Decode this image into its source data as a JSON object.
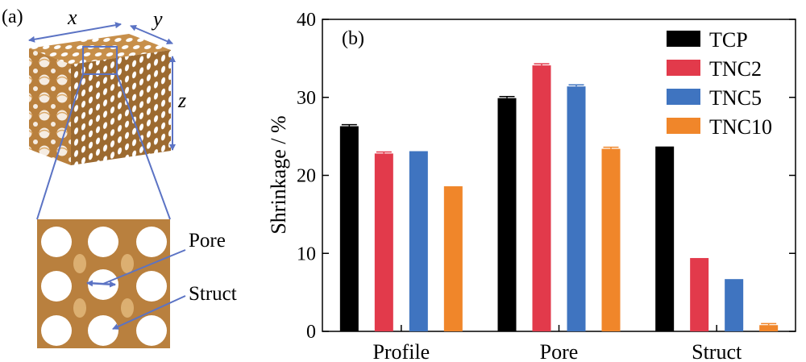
{
  "panel_a": {
    "label": "(a)",
    "axis_x": "x",
    "axis_y": "y",
    "axis_z": "z",
    "pore_label": "Pore",
    "struct_label": "Struct"
  },
  "chart_data": {
    "type": "bar",
    "panel_label": "(b)",
    "categories": [
      "Profile",
      "Pore",
      "Struct"
    ],
    "ylabel": "Shrinkage / %",
    "ylim": [
      0,
      40
    ],
    "yticks": [
      0,
      10,
      20,
      30,
      40
    ],
    "legend_position": "top-right",
    "series": [
      {
        "name": "TCP",
        "color": "#000000",
        "values": [
          26.3,
          29.9,
          23.7
        ],
        "errors": [
          0.2,
          0.2,
          0.0
        ]
      },
      {
        "name": "TNC2",
        "color": "#e23a4b",
        "values": [
          22.8,
          34.1,
          9.4
        ],
        "errors": [
          0.2,
          0.2,
          0.0
        ]
      },
      {
        "name": "TNC5",
        "color": "#3f74c0",
        "values": [
          23.1,
          31.4,
          6.7
        ],
        "errors": [
          0.0,
          0.2,
          0.0
        ]
      },
      {
        "name": "TNC10",
        "color": "#f0862a",
        "values": [
          18.6,
          23.4,
          0.8
        ],
        "errors": [
          0.0,
          0.2,
          0.2
        ]
      }
    ]
  }
}
